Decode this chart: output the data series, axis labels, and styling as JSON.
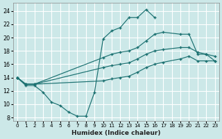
{
  "xlabel": "Humidex (Indice chaleur)",
  "xlim": [
    -0.5,
    23.5
  ],
  "ylim": [
    7.5,
    25.2
  ],
  "yticks": [
    8,
    10,
    12,
    14,
    16,
    18,
    20,
    22,
    24
  ],
  "xticks": [
    0,
    1,
    2,
    3,
    4,
    5,
    6,
    7,
    8,
    9,
    10,
    11,
    12,
    13,
    14,
    15,
    16,
    17,
    18,
    19,
    20,
    21,
    22,
    23
  ],
  "bg_color": "#cce8e8",
  "line_color": "#1a7070",
  "grid_color": "#ffffff",
  "lines": [
    {
      "x": [
        0,
        1,
        2,
        3,
        4,
        5,
        6,
        7,
        8,
        9,
        10,
        11,
        12,
        13,
        14,
        15,
        16
      ],
      "y": [
        14.0,
        12.8,
        12.8,
        11.8,
        10.3,
        9.8,
        8.8,
        8.2,
        8.2,
        11.8,
        19.8,
        21.0,
        21.5,
        23.0,
        23.0,
        24.2,
        23.0
      ]
    },
    {
      "x": [
        0,
        1,
        2,
        10,
        11,
        12,
        13,
        14,
        15,
        16,
        17,
        19,
        20,
        21,
        22,
        23
      ],
      "y": [
        14.0,
        13.0,
        13.0,
        17.0,
        17.5,
        17.8,
        18.0,
        18.5,
        19.5,
        20.5,
        20.8,
        20.5,
        20.5,
        17.5,
        17.5,
        16.5
      ]
    },
    {
      "x": [
        0,
        1,
        2,
        10,
        11,
        12,
        13,
        14,
        15,
        16,
        17,
        19,
        20,
        21,
        22,
        23
      ],
      "y": [
        14.0,
        13.0,
        13.0,
        15.5,
        15.8,
        16.0,
        16.2,
        16.8,
        17.5,
        18.0,
        18.2,
        18.5,
        18.5,
        17.8,
        17.5,
        17.2
      ]
    },
    {
      "x": [
        0,
        1,
        2,
        10,
        11,
        12,
        13,
        14,
        15,
        16,
        17,
        19,
        20,
        21,
        22,
        23
      ],
      "y": [
        14.0,
        13.0,
        13.0,
        13.5,
        13.8,
        14.0,
        14.2,
        14.8,
        15.5,
        16.0,
        16.3,
        16.8,
        17.2,
        16.5,
        16.5,
        16.5
      ]
    }
  ]
}
